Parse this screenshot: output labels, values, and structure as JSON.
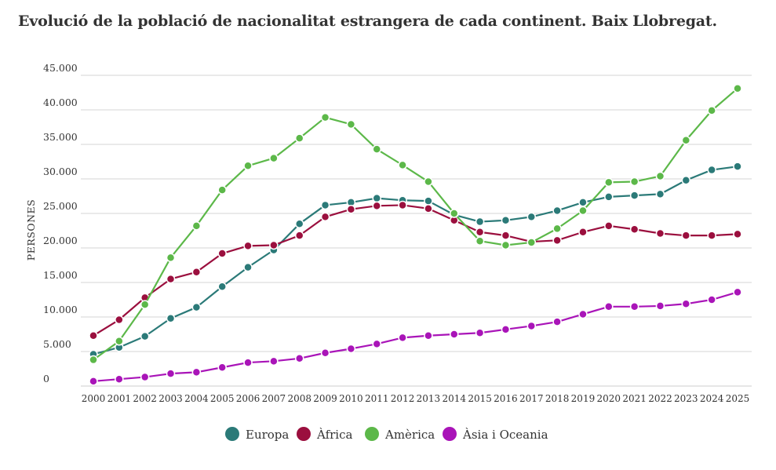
{
  "title": "Evolució de la població de nacionalitat estrangera de cada continent. Baix Llobregat.",
  "chart_data": {
    "type": "line",
    "title": "Evolució de la població de nacionalitat estrangera de cada continent. Baix Llobregat.",
    "ylabel": "PERSONES",
    "xlabel": "",
    "x": [
      "2000",
      "2001",
      "2002",
      "2003",
      "2004",
      "2005",
      "2006",
      "2007",
      "2008",
      "2009",
      "2010",
      "2011",
      "2012",
      "2013",
      "2014",
      "2015",
      "2016",
      "2017",
      "2018",
      "2019",
      "2020",
      "2021",
      "2022",
      "2023",
      "2024",
      "2025"
    ],
    "ylim": [
      0,
      45000
    ],
    "yticks": [
      0,
      5000,
      10000,
      15000,
      20000,
      25000,
      30000,
      35000,
      40000,
      45000
    ],
    "ytick_labels": [
      "0",
      "5.000",
      "10.000",
      "15.000",
      "20.000",
      "25.000",
      "30.000",
      "35.000",
      "40.000",
      "45.000"
    ],
    "grid": true,
    "legend_position": "bottom-center",
    "series": [
      {
        "name": "Europa",
        "color": "#2b7a78",
        "values": [
          4600,
          5600,
          7200,
          9800,
          11400,
          14400,
          17200,
          19700,
          23500,
          26200,
          26600,
          27200,
          26900,
          26800,
          24800,
          23800,
          24000,
          24500,
          25400,
          26600,
          27400,
          27600,
          27800,
          29800,
          31300,
          31800
        ]
      },
      {
        "name": "Àfrica",
        "color": "#9b0f3e",
        "values": [
          7300,
          9600,
          12800,
          15500,
          16500,
          19200,
          20300,
          20400,
          21800,
          24500,
          25600,
          26100,
          26200,
          25700,
          24000,
          22300,
          21800,
          20900,
          21100,
          22300,
          23200,
          22700,
          22100,
          21800,
          21800,
          22000
        ]
      },
      {
        "name": "Amèrica",
        "color": "#5cb849",
        "values": [
          3800,
          6500,
          11800,
          18600,
          23200,
          28400,
          31900,
          33000,
          35900,
          38900,
          37900,
          34300,
          32000,
          29600,
          25000,
          21000,
          20400,
          20800,
          22800,
          25400,
          29500,
          29600,
          30400,
          35600,
          39900,
          43100
        ]
      },
      {
        "name": "Àsia i Oceania",
        "color": "#a914b8",
        "values": [
          700,
          1000,
          1300,
          1800,
          2000,
          2700,
          3400,
          3600,
          4000,
          4800,
          5400,
          6100,
          7000,
          7300,
          7500,
          7700,
          8200,
          8700,
          9300,
          10400,
          11500,
          11500,
          11600,
          11900,
          12500,
          13600
        ]
      }
    ]
  }
}
